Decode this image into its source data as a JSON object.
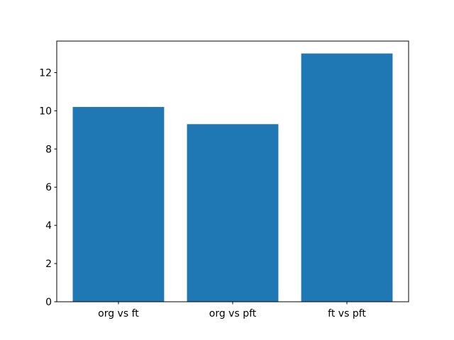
{
  "figure": {
    "background": "#ffffff"
  },
  "chart_data": {
    "type": "bar",
    "categories": [
      "org vs ft",
      "org vs pft",
      "ft vs pft"
    ],
    "values": [
      10.2,
      9.3,
      13.0
    ],
    "title": "",
    "xlabel": "",
    "ylabel": "",
    "ylim": [
      0,
      13.65
    ],
    "yticks": [
      0,
      2,
      4,
      6,
      8,
      10,
      12
    ],
    "bar_color": "#1f77b4",
    "axes_color": "#000000",
    "background": "#ffffff",
    "grid": false,
    "legend": null,
    "bar_width_fraction": 0.8
  }
}
